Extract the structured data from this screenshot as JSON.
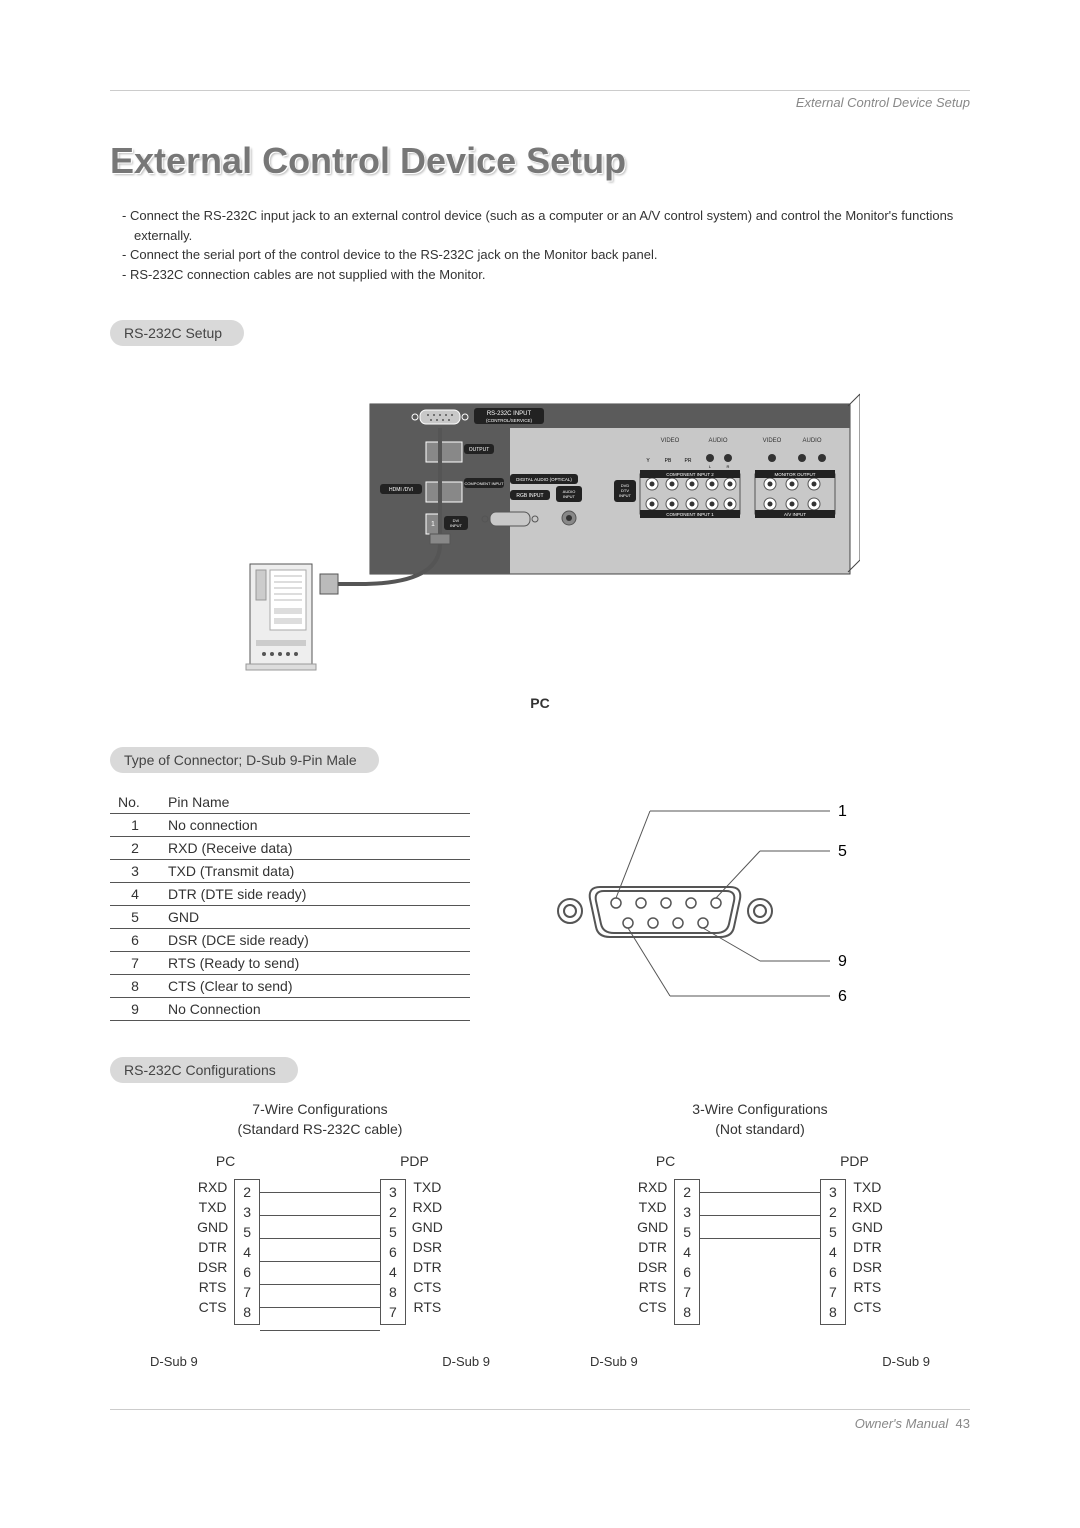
{
  "header": {
    "section": "External Control Device Setup"
  },
  "title": "External Control Device Setup",
  "bullets": [
    "Connect the RS-232C input jack to an external control device (such as a computer or an A/V control system) and control the Monitor's functions externally.",
    "Connect the serial port of the control device to the RS-232C jack on the Monitor back panel.",
    "RS-232C connection cables are not supplied with the Monitor."
  ],
  "pills": {
    "setup": "RS-232C Setup",
    "connector": "Type of Connector; D-Sub 9-Pin Male",
    "config": "RS-232C Configurations"
  },
  "panel": {
    "rs232_label": "RS-232C INPUT",
    "rs232_sub": "(CONTROL/SERVICE)",
    "output": "OUTPUT",
    "hdmi": "HDMI /DVI",
    "component_input": "COMPONENT INPUT",
    "digital_audio": "DIGITAL AUDIO (OPTICAL)",
    "rgb_input": "RGB INPUT",
    "audio_input": "AUDIO INPUT",
    "dvi_input": "DVI INPUT",
    "dvd_dtv": "DVD DTV INPUT",
    "video": "VIDEO",
    "audio": "AUDIO",
    "comp2": "COMPONENT INPUT 2",
    "comp1": "COMPONENT INPUT 1",
    "monitor_out": "MONITOR OUTPUT",
    "av_input": "A/V INPUT",
    "ypbpr": [
      "Y",
      "PB",
      "PR",
      "L",
      "R"
    ],
    "pc_label": "PC"
  },
  "pin_table": {
    "headers": [
      "No.",
      "Pin Name"
    ],
    "rows": [
      [
        "1",
        "No connection"
      ],
      [
        "2",
        "RXD (Receive data)"
      ],
      [
        "3",
        "TXD (Transmit data)"
      ],
      [
        "4",
        "DTR (DTE side ready)"
      ],
      [
        "5",
        "GND"
      ],
      [
        "6",
        "DSR (DCE side ready)"
      ],
      [
        "7",
        "RTS (Ready to send)"
      ],
      [
        "8",
        "CTS (Clear to send)"
      ],
      [
        "9",
        "No Connection"
      ]
    ]
  },
  "connector_callouts": [
    "1",
    "5",
    "9",
    "6"
  ],
  "configs": {
    "seven": {
      "title": "7-Wire Configurations",
      "sub": "(Standard RS-232C cable)",
      "left_hd": "PC",
      "right_hd": "PDP",
      "left": [
        [
          "RXD",
          "2"
        ],
        [
          "TXD",
          "3"
        ],
        [
          "GND",
          "5"
        ],
        [
          "DTR",
          "4"
        ],
        [
          "DSR",
          "6"
        ],
        [
          "RTS",
          "7"
        ],
        [
          "CTS",
          "8"
        ]
      ],
      "right": [
        [
          "3",
          "TXD"
        ],
        [
          "2",
          "RXD"
        ],
        [
          "5",
          "GND"
        ],
        [
          "6",
          "DSR"
        ],
        [
          "4",
          "DTR"
        ],
        [
          "8",
          "CTS"
        ],
        [
          "7",
          "RTS"
        ]
      ],
      "lines": [
        true,
        true,
        true,
        true,
        true,
        true,
        true
      ],
      "dsub": "D-Sub 9"
    },
    "three": {
      "title": "3-Wire Configurations",
      "sub": "(Not standard)",
      "left_hd": "PC",
      "right_hd": "PDP",
      "left": [
        [
          "RXD",
          "2"
        ],
        [
          "TXD",
          "3"
        ],
        [
          "GND",
          "5"
        ],
        [
          "DTR",
          "4"
        ],
        [
          "DSR",
          "6"
        ],
        [
          "RTS",
          "7"
        ],
        [
          "CTS",
          "8"
        ]
      ],
      "right": [
        [
          "3",
          "TXD"
        ],
        [
          "2",
          "RXD"
        ],
        [
          "5",
          "GND"
        ],
        [
          "4",
          "DTR"
        ],
        [
          "6",
          "DSR"
        ],
        [
          "7",
          "RTS"
        ],
        [
          "8",
          "CTS"
        ]
      ],
      "lines": [
        true,
        true,
        true,
        false,
        false,
        false,
        false
      ],
      "dsub": "D-Sub 9"
    }
  },
  "footer": {
    "text": "Owner's Manual",
    "page": "43"
  },
  "colors": {
    "panel_dark": "#5b5b5b",
    "panel_light": "#c8c8c8",
    "text_gray": "#777777",
    "pill_bg": "#d9d9d9",
    "line": "#555555"
  }
}
